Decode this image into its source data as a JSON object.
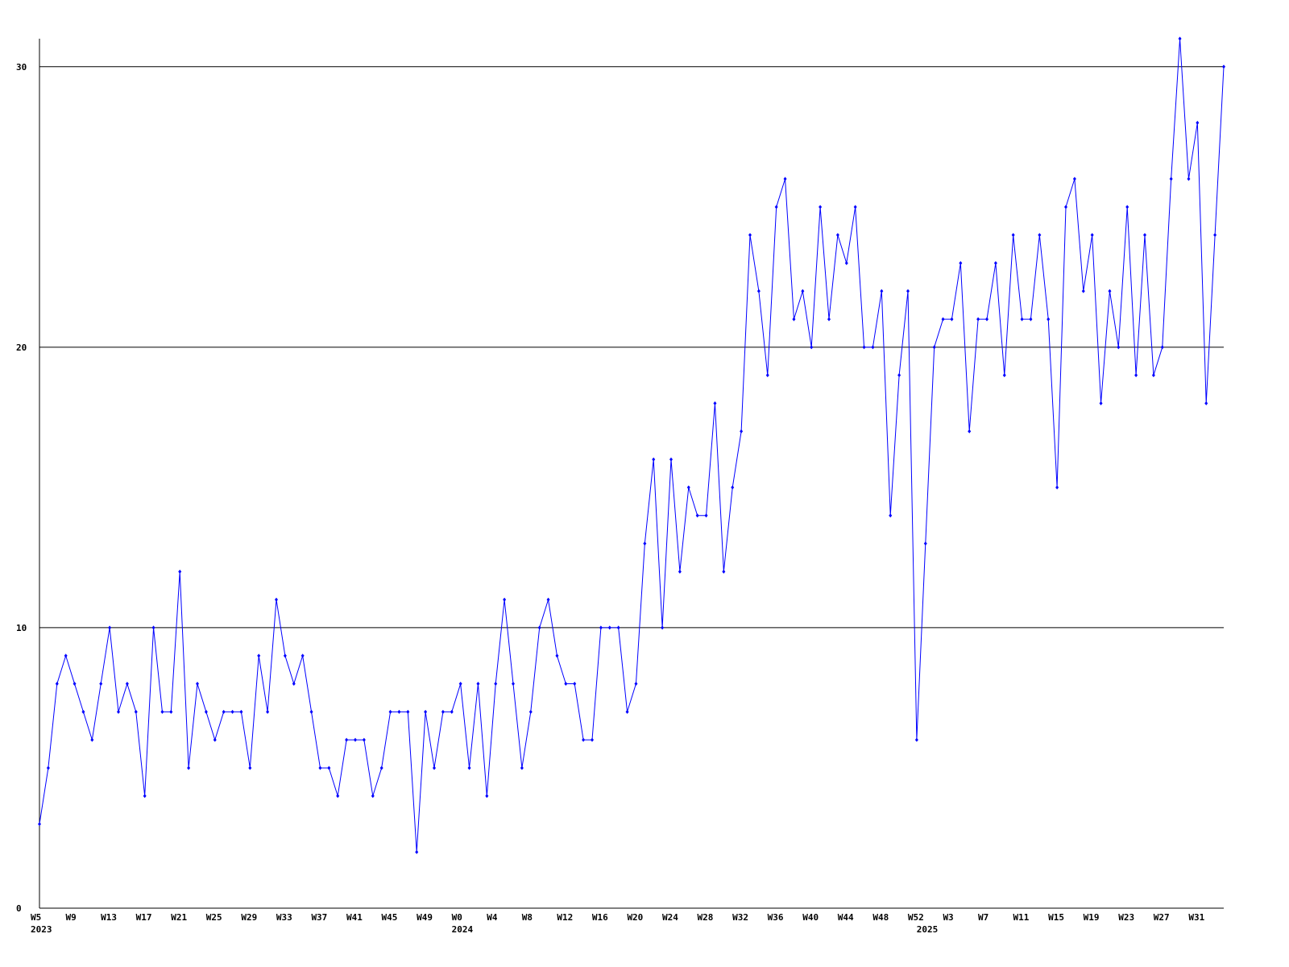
{
  "chart_data": {
    "type": "line",
    "categories": [
      "W5",
      null,
      null,
      null,
      "W9",
      null,
      null,
      null,
      "W13",
      null,
      null,
      null,
      "W17",
      null,
      null,
      null,
      "W21",
      null,
      null,
      null,
      "W25",
      null,
      null,
      null,
      "W29",
      null,
      null,
      null,
      "W33",
      null,
      null,
      null,
      "W37",
      null,
      null,
      null,
      "W41",
      null,
      null,
      null,
      "W45",
      null,
      null,
      null,
      "W49",
      null,
      null,
      null,
      "W0",
      null,
      null,
      null,
      "W4",
      null,
      null,
      null,
      "W8",
      null,
      null,
      null,
      "W12",
      null,
      null,
      null,
      "W16",
      null,
      null,
      null,
      "W20",
      null,
      null,
      null,
      "W24",
      null,
      null,
      null,
      "W28",
      null,
      null,
      null,
      "W32",
      null,
      null,
      null,
      "W36",
      null,
      null,
      null,
      "W40",
      null,
      null,
      null,
      "W44",
      null,
      null,
      null,
      "W48",
      null,
      null,
      null,
      "W52",
      null,
      null,
      null,
      "W3",
      null,
      null,
      null,
      "W7",
      null,
      null,
      null,
      "W11",
      null,
      null,
      null,
      "W15",
      null,
      null,
      null,
      "W19",
      null,
      null,
      null,
      "W23",
      null,
      null,
      null,
      "W27",
      null,
      null,
      null,
      "W31",
      null,
      null,
      null
    ],
    "category_years": [
      "2023",
      null,
      null,
      null,
      null,
      null,
      null,
      null,
      null,
      null,
      null,
      null,
      null,
      null,
      null,
      null,
      null,
      null,
      null,
      null,
      null,
      null,
      null,
      null,
      null,
      null,
      null,
      null,
      null,
      null,
      null,
      null,
      null,
      null,
      null,
      null,
      null,
      null,
      null,
      null,
      null,
      null,
      null,
      null,
      null,
      null,
      null,
      null,
      "2024",
      null,
      null,
      null,
      null,
      null,
      null,
      null,
      null,
      null,
      null,
      null,
      null,
      null,
      null,
      null,
      null,
      null,
      null,
      null,
      null,
      null,
      null,
      null,
      null,
      null,
      null,
      null,
      null,
      null,
      null,
      null,
      null,
      null,
      null,
      null,
      null,
      null,
      null,
      null,
      null,
      null,
      null,
      null,
      null,
      null,
      null,
      null,
      null,
      null,
      null,
      null,
      null,
      "2025",
      null,
      null,
      null,
      null,
      null,
      null,
      null,
      null,
      null,
      null,
      null,
      null,
      null,
      null,
      null,
      null,
      null,
      null,
      null,
      null,
      null,
      null,
      null,
      null,
      null,
      null,
      null,
      null,
      null,
      null,
      null,
      null,
      null,
      null
    ],
    "series": [
      {
        "color": "#0000ff",
        "values": [
          3,
          5,
          8,
          9,
          8,
          7,
          6,
          8,
          10,
          7,
          8,
          7,
          4,
          10,
          7,
          7,
          12,
          5,
          8,
          7,
          6,
          7,
          7,
          7,
          5,
          9,
          7,
          11,
          9,
          8,
          9,
          7,
          5,
          5,
          4,
          6,
          6,
          6,
          4,
          5,
          7,
          7,
          7,
          2,
          7,
          5,
          7,
          7,
          8,
          5,
          8,
          4,
          8,
          11,
          8,
          5,
          7,
          10,
          11,
          9,
          8,
          8,
          6,
          6,
          10,
          10,
          10,
          7,
          8,
          13,
          16,
          10,
          16,
          12,
          15,
          14,
          14,
          18,
          12,
          15,
          17,
          24,
          22,
          19,
          25,
          26,
          21,
          22,
          20,
          25,
          21,
          24,
          23,
          25,
          20,
          20,
          22,
          14,
          19,
          22,
          6,
          13,
          20,
          21,
          21,
          23,
          17,
          21,
          21,
          23,
          19,
          24,
          21,
          21,
          24,
          21,
          15,
          25,
          26,
          22,
          24,
          18,
          22,
          20,
          25,
          19,
          24,
          19,
          20,
          26,
          31,
          26,
          28,
          18,
          24,
          30
        ]
      }
    ],
    "ylim": [
      0,
      31
    ],
    "yticks": [
      0,
      10,
      20,
      30
    ],
    "grid": true
  }
}
